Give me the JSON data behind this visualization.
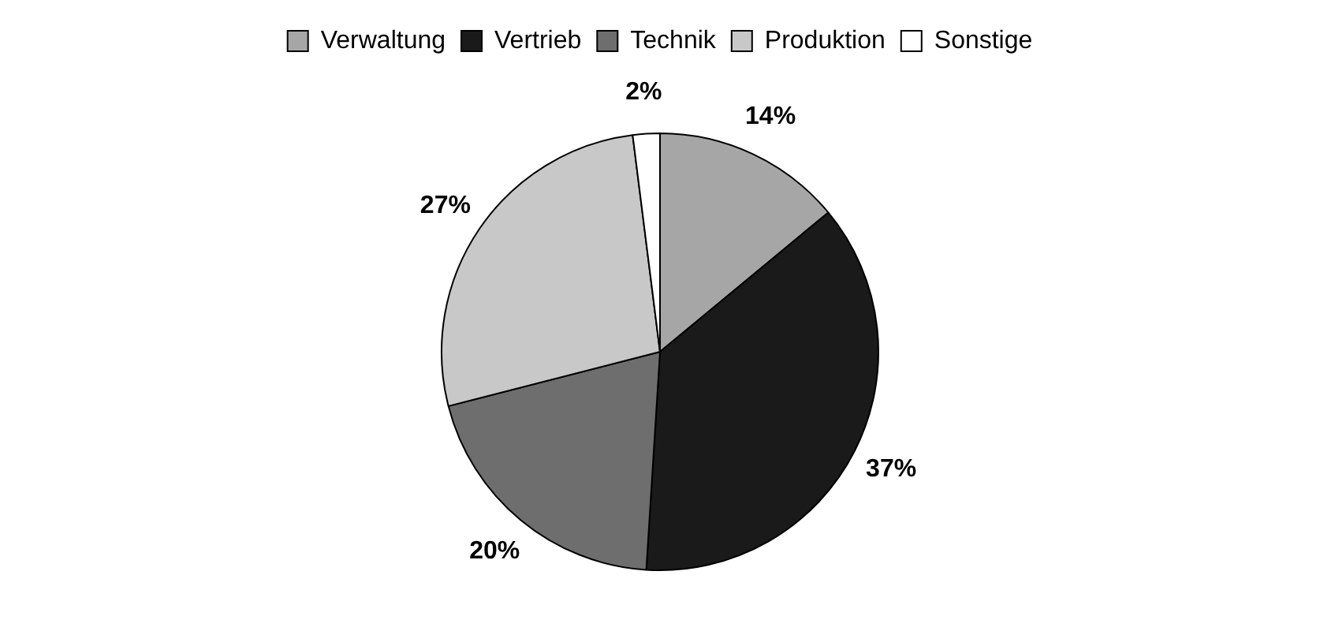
{
  "chart_data": {
    "type": "pie",
    "categories": [
      "Verwaltung",
      "Vertrieb",
      "Technik",
      "Produktion",
      "Sonstige"
    ],
    "values": [
      14,
      37,
      20,
      27,
      2
    ],
    "colors": [
      "#a6a6a6",
      "#1a1a1a",
      "#6e6e6e",
      "#c8c8c8",
      "#ffffff"
    ],
    "value_labels": [
      "14%",
      "37%",
      "20%",
      "27%",
      "2%"
    ],
    "legend": "top"
  }
}
